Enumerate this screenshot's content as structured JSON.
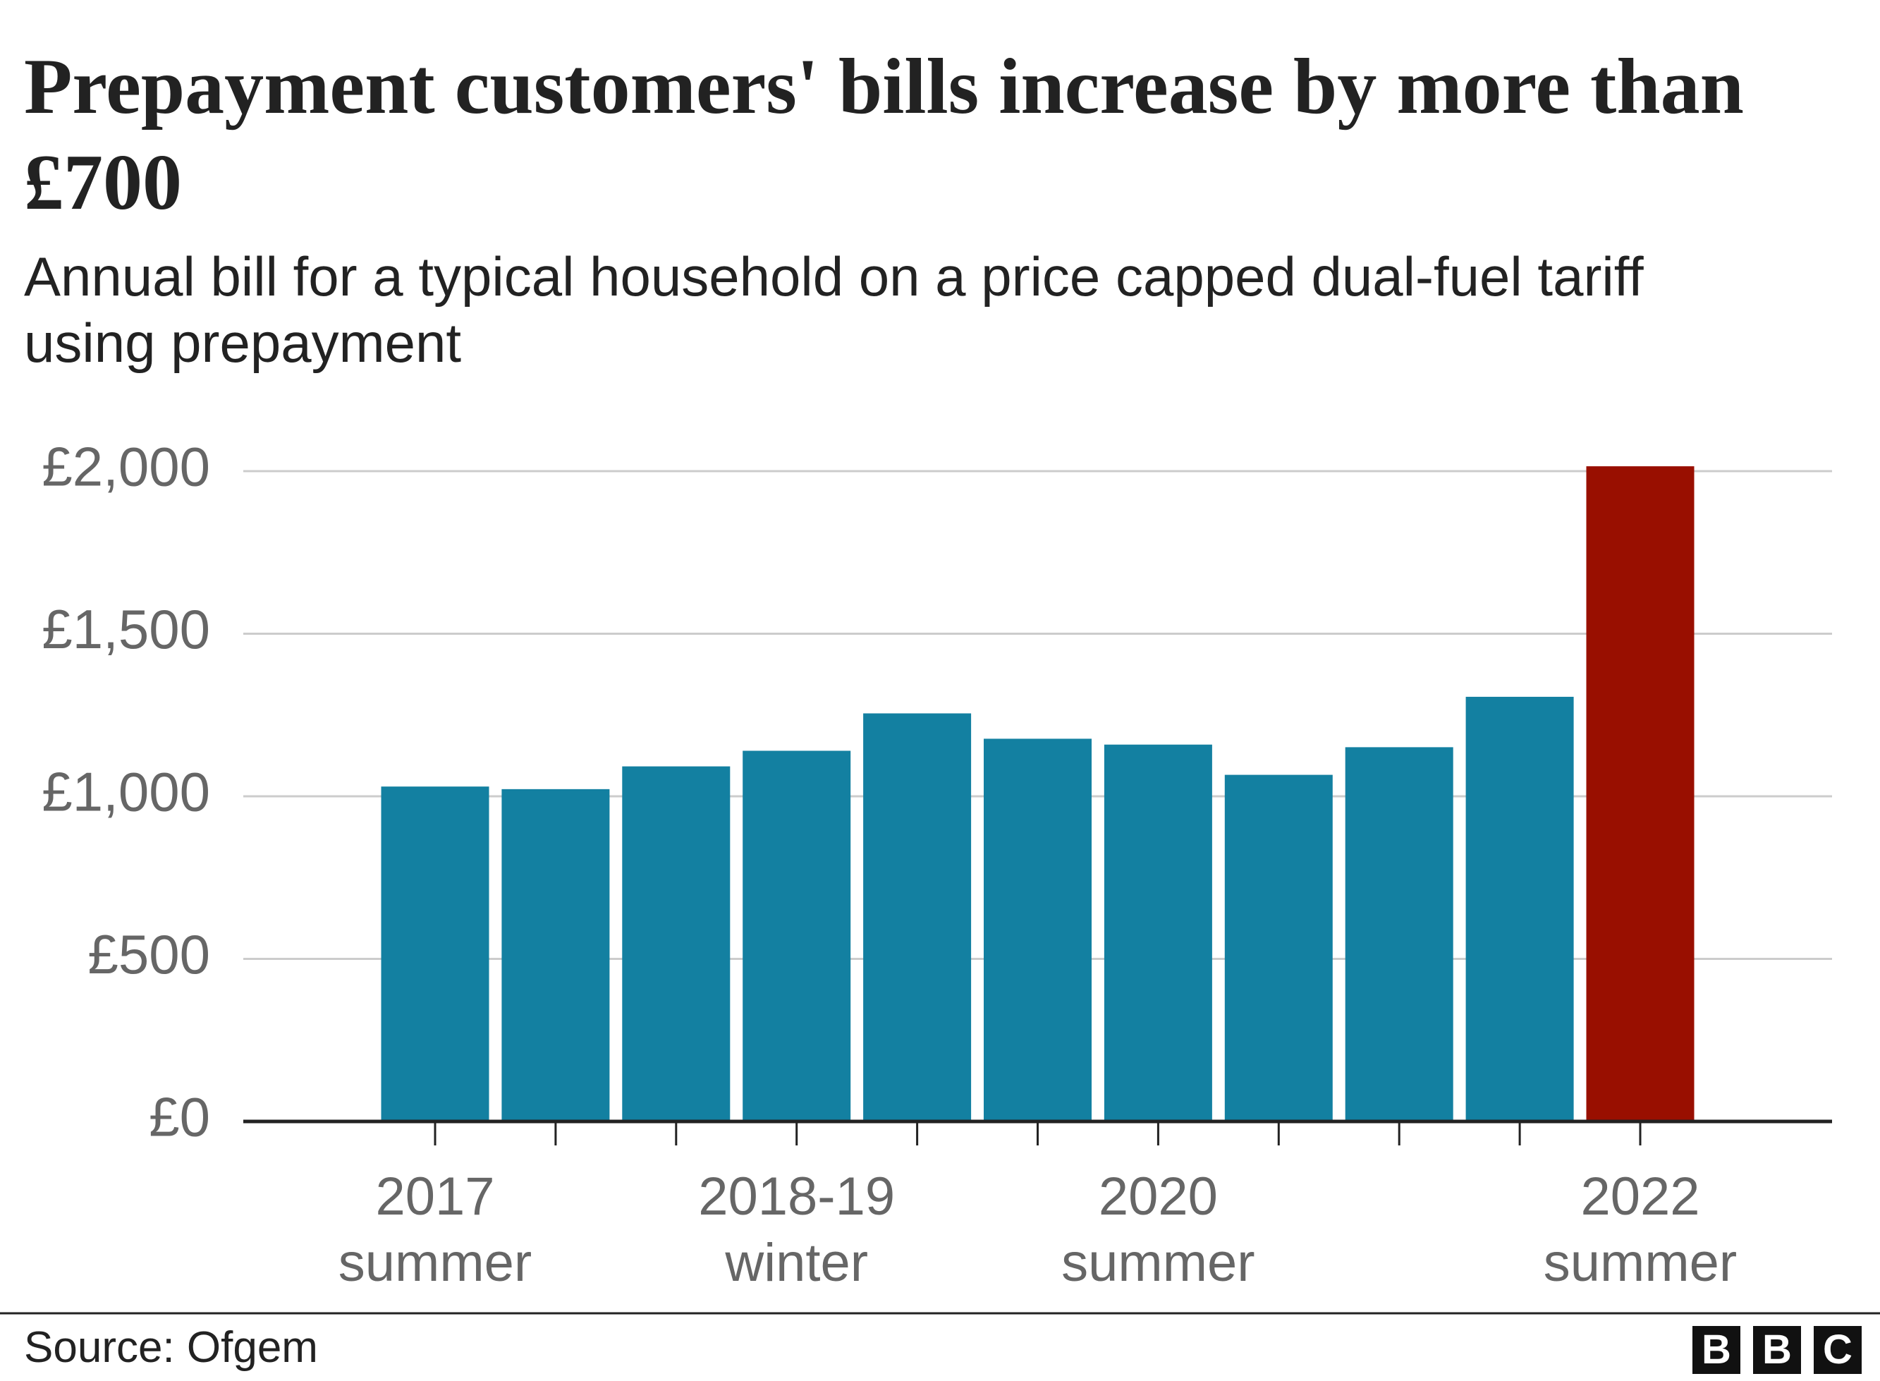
{
  "chart_data": {
    "type": "bar",
    "title": "Prepayment customers' bills increase by more than £700",
    "subtitle": "Annual bill for a typical household on a price capped dual-fuel tariff using prepayment",
    "categories": [
      "2017 summer",
      null,
      null,
      "2018-19 winter",
      null,
      null,
      "2020 summer",
      null,
      null,
      null,
      "2022 summer"
    ],
    "values": [
      1030,
      1022,
      1092,
      1140,
      1255,
      1177,
      1159,
      1066,
      1151,
      1306,
      2015
    ],
    "colors": [
      "#1380a1",
      "#1380a1",
      "#1380a1",
      "#1380a1",
      "#1380a1",
      "#1380a1",
      "#1380a1",
      "#1380a1",
      "#1380a1",
      "#1380a1",
      "#990f00"
    ],
    "ylim": [
      0,
      2000
    ],
    "yticks": [
      {
        "value": 0,
        "label": "£0"
      },
      {
        "value": 500,
        "label": "£500"
      },
      {
        "value": 1000,
        "label": "£1,000"
      },
      {
        "value": 1500,
        "label": "£1,500"
      },
      {
        "value": 2000,
        "label": "£2,000"
      }
    ],
    "grid": true,
    "source": "Source: Ofgem",
    "logo": [
      "B",
      "B",
      "C"
    ]
  }
}
